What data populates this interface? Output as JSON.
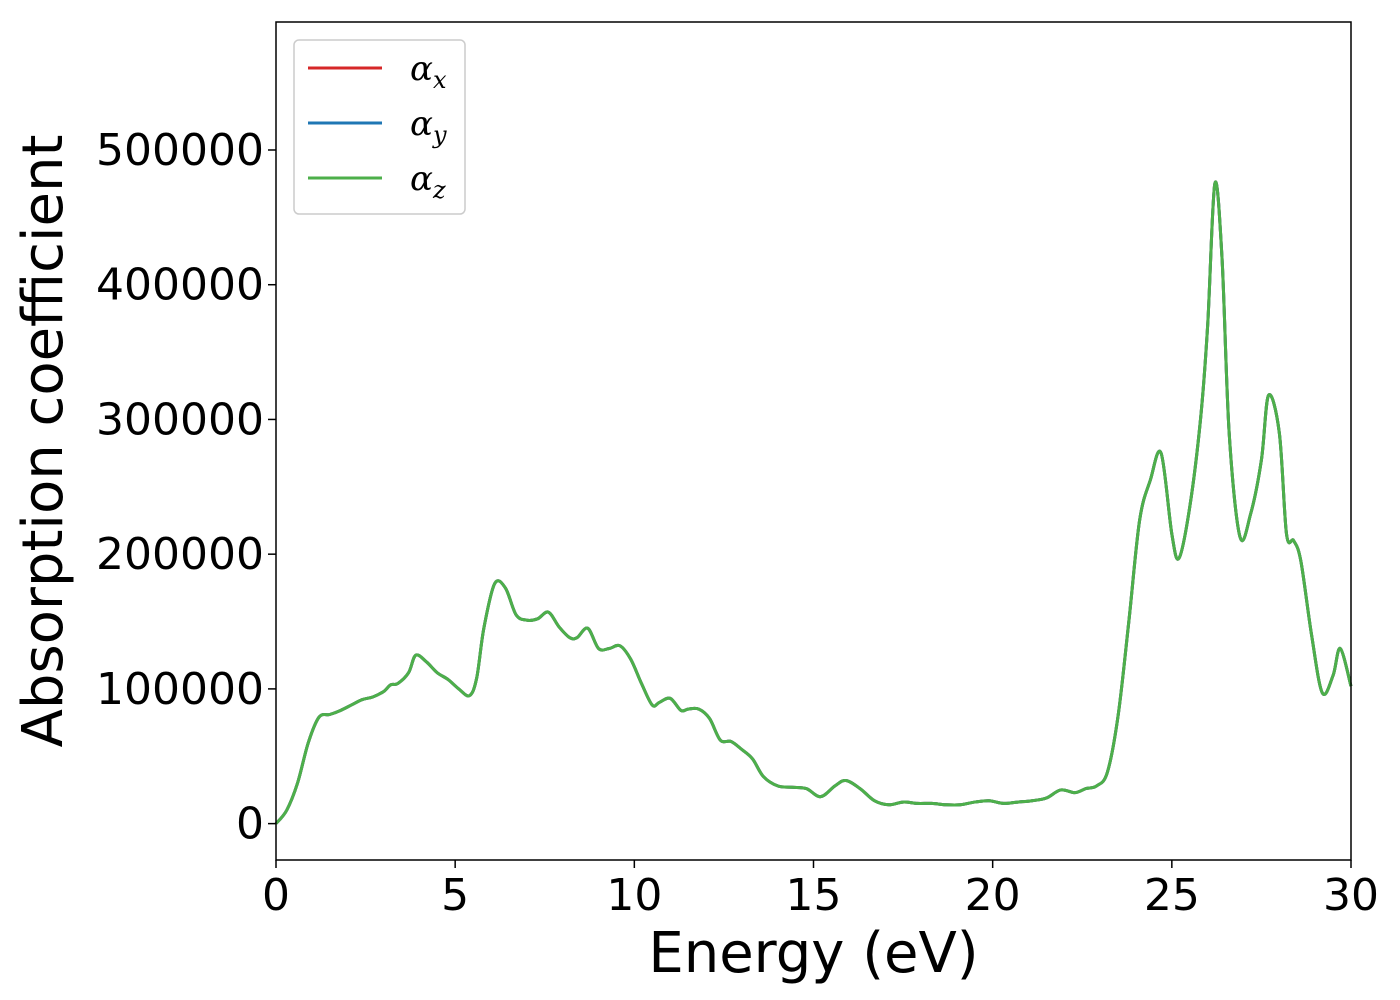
{
  "chart_data": {
    "type": "line",
    "title": "",
    "xlabel": "Energy (eV)",
    "ylabel": "Absorption coefficient",
    "xlim": [
      0,
      30
    ],
    "ylim": [
      -27000,
      595000
    ],
    "xticks": [
      0,
      5,
      10,
      15,
      20,
      25,
      30
    ],
    "yticks": [
      0,
      100000,
      200000,
      300000,
      400000,
      500000
    ],
    "grid": false,
    "legend_position": "top-left",
    "x": [
      0,
      0.3,
      0.6,
      0.9,
      1.2,
      1.5,
      1.8,
      2.1,
      2.4,
      2.7,
      3.0,
      3.2,
      3.4,
      3.7,
      3.9,
      4.2,
      4.5,
      4.8,
      5.1,
      5.4,
      5.6,
      5.8,
      6.1,
      6.4,
      6.7,
      7.0,
      7.3,
      7.6,
      7.9,
      8.2,
      8.4,
      8.7,
      9.0,
      9.3,
      9.6,
      9.9,
      10.2,
      10.5,
      10.7,
      11.0,
      11.3,
      11.5,
      11.8,
      12.1,
      12.4,
      12.7,
      13.0,
      13.3,
      13.6,
      14.0,
      14.4,
      14.8,
      15.2,
      15.6,
      15.9,
      16.3,
      16.7,
      17.1,
      17.5,
      17.9,
      18.3,
      18.7,
      19.1,
      19.5,
      19.9,
      20.3,
      20.7,
      21.1,
      21.5,
      21.9,
      22.3,
      22.6,
      22.9,
      23.2,
      23.5,
      23.8,
      24.1,
      24.4,
      24.7,
      25.0,
      25.2,
      25.5,
      25.8,
      26.0,
      26.2,
      26.4,
      26.6,
      26.9,
      27.2,
      27.5,
      27.7,
      28.0,
      28.2,
      28.4,
      28.6,
      28.9,
      29.2,
      29.5,
      29.7,
      30.0
    ],
    "series": [
      {
        "name": "x",
        "color": "#d62728",
        "values": [
          0,
          10000,
          30000,
          60000,
          79000,
          81000,
          84000,
          88000,
          92000,
          94000,
          98000,
          103000,
          104000,
          112000,
          125000,
          120000,
          112000,
          107000,
          100000,
          95000,
          108000,
          145000,
          178000,
          175000,
          155000,
          151000,
          152000,
          157000,
          146000,
          138000,
          138000,
          145000,
          130000,
          130000,
          132000,
          122000,
          104000,
          88000,
          90000,
          93000,
          84000,
          85000,
          85000,
          78000,
          62000,
          61000,
          55000,
          48000,
          35000,
          28000,
          27000,
          26000,
          20000,
          28000,
          32000,
          26000,
          17000,
          14000,
          16000,
          15000,
          15000,
          14000,
          14000,
          16000,
          17000,
          15000,
          16000,
          17000,
          19000,
          25000,
          23000,
          26000,
          28000,
          38000,
          80000,
          150000,
          225000,
          255000,
          275000,
          215000,
          197000,
          235000,
          300000,
          370000,
          475000,
          420000,
          290000,
          213000,
          230000,
          270000,
          318000,
          290000,
          215000,
          210000,
          195000,
          140000,
          97000,
          110000,
          130000,
          102000
        ]
      },
      {
        "name": "y",
        "color": "#1f77b4",
        "values": [
          0,
          10000,
          30000,
          60000,
          79000,
          81000,
          84000,
          88000,
          92000,
          94000,
          98000,
          103000,
          104000,
          112000,
          125000,
          120000,
          112000,
          107000,
          100000,
          95000,
          108000,
          145000,
          178000,
          175000,
          155000,
          151000,
          152000,
          157000,
          146000,
          138000,
          138000,
          145000,
          130000,
          130000,
          132000,
          122000,
          104000,
          88000,
          90000,
          93000,
          84000,
          85000,
          85000,
          78000,
          62000,
          61000,
          55000,
          48000,
          35000,
          28000,
          27000,
          26000,
          20000,
          28000,
          32000,
          26000,
          17000,
          14000,
          16000,
          15000,
          15000,
          14000,
          14000,
          16000,
          17000,
          15000,
          16000,
          17000,
          19000,
          25000,
          23000,
          26000,
          28000,
          38000,
          80000,
          150000,
          225000,
          255000,
          275000,
          215000,
          197000,
          235000,
          300000,
          370000,
          475000,
          420000,
          290000,
          213000,
          230000,
          270000,
          318000,
          290000,
          215000,
          210000,
          195000,
          140000,
          97000,
          110000,
          130000,
          102000
        ]
      },
      {
        "name": "z",
        "color": "#4daf4a",
        "values": [
          0,
          10000,
          30000,
          60000,
          79000,
          81000,
          84000,
          88000,
          92000,
          94000,
          98000,
          103000,
          104000,
          112000,
          125000,
          120000,
          112000,
          107000,
          100000,
          95000,
          108000,
          145000,
          178000,
          175000,
          155000,
          151000,
          152000,
          157000,
          146000,
          138000,
          138000,
          145000,
          130000,
          130000,
          132000,
          122000,
          104000,
          88000,
          90000,
          93000,
          84000,
          85000,
          85000,
          78000,
          62000,
          61000,
          55000,
          48000,
          35000,
          28000,
          27000,
          26000,
          20000,
          28000,
          32000,
          26000,
          17000,
          14000,
          16000,
          15000,
          15000,
          14000,
          14000,
          16000,
          17000,
          15000,
          16000,
          17000,
          19000,
          25000,
          23000,
          26000,
          28000,
          38000,
          80000,
          150000,
          225000,
          255000,
          275000,
          215000,
          197000,
          235000,
          300000,
          370000,
          475000,
          420000,
          290000,
          213000,
          230000,
          270000,
          318000,
          290000,
          215000,
          210000,
          195000,
          140000,
          97000,
          110000,
          130000,
          102000
        ]
      }
    ],
    "legend": [
      {
        "symbol": "α",
        "subscript": "x"
      },
      {
        "symbol": "α",
        "subscript": "y"
      },
      {
        "symbol": "α",
        "subscript": "z"
      }
    ]
  }
}
